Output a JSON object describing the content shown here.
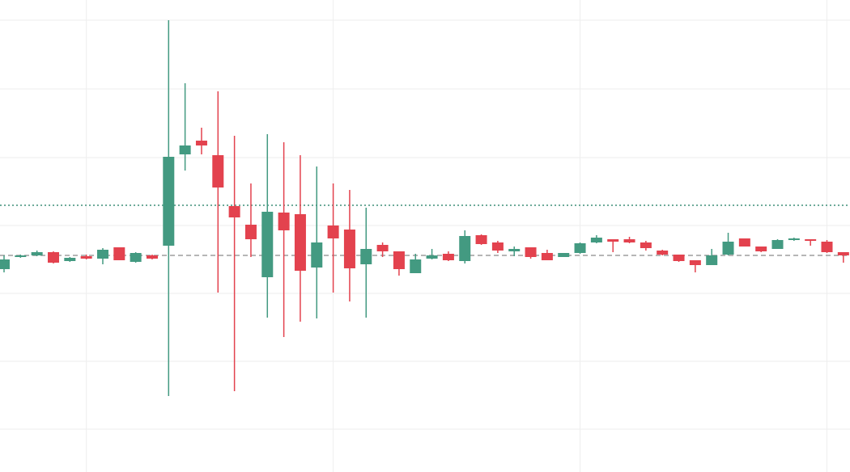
{
  "chart_data": {
    "type": "candlestick",
    "categories": [
      null,
      null,
      null,
      null,
      null,
      null,
      null,
      null,
      null,
      null,
      null,
      null,
      null,
      null,
      null,
      null,
      null,
      null,
      null,
      null,
      null,
      null,
      null,
      null,
      null,
      null,
      null,
      null,
      null,
      null,
      null,
      null,
      null,
      null,
      null,
      null,
      null,
      null,
      null,
      null,
      null,
      null,
      null,
      null,
      null,
      null,
      null,
      null,
      null,
      null,
      null,
      null
    ],
    "open": [
      25.1,
      26.6,
      26.8,
      27.2,
      26.1,
      26.7,
      26.4,
      27.8,
      26.0,
      26.8,
      28.0,
      39.3,
      41.0,
      39.2,
      32.9,
      30.6,
      24.1,
      32.1,
      31.9,
      25.3,
      30.5,
      30.0,
      25.7,
      28.1,
      27.3,
      24.6,
      26.4,
      27.0,
      26.1,
      29.3,
      28.4,
      27.3,
      27.8,
      27.1,
      26.6,
      27.1,
      28.4,
      28.8,
      28.8,
      28.4,
      27.4,
      26.9,
      26.2,
      25.6,
      26.9,
      28.9,
      27.9,
      27.6,
      28.7,
      28.8,
      28.5,
      27.2
    ],
    "high": [
      26.8,
      26.9,
      27.4,
      27.3,
      26.6,
      26.9,
      27.7,
      27.8,
      27.2,
      26.9,
      55.9,
      48.1,
      42.6,
      47.1,
      41.6,
      35.7,
      41.8,
      40.8,
      39.2,
      37.8,
      35.7,
      34.9,
      32.7,
      28.4,
      27.3,
      27.0,
      27.6,
      27.3,
      29.9,
      29.4,
      28.6,
      27.9,
      27.8,
      27.5,
      27.1,
      28.4,
      29.3,
      28.8,
      29.1,
      28.6,
      27.5,
      26.9,
      26.2,
      27.6,
      29.6,
      28.9,
      27.9,
      28.8,
      29.0,
      28.8,
      28.7,
      27.2
    ],
    "low": [
      24.7,
      26.5,
      26.7,
      25.8,
      26.0,
      26.3,
      25.7,
      26.2,
      25.9,
      26.3,
      9.4,
      37.3,
      39.3,
      22.2,
      10.0,
      26.6,
      19.1,
      16.7,
      18.6,
      19.0,
      22.2,
      21.1,
      19.1,
      26.6,
      24.3,
      24.6,
      26.3,
      26.1,
      25.8,
      28.1,
      27.1,
      26.7,
      26.4,
      26.2,
      26.6,
      27.0,
      28.3,
      27.2,
      28.3,
      27.4,
      26.8,
      26.0,
      24.7,
      25.6,
      26.8,
      27.9,
      27.2,
      27.6,
      28.6,
      28.0,
      27.1,
      25.9
    ],
    "close": [
      26.3,
      26.8,
      27.2,
      25.9,
      26.5,
      26.4,
      27.5,
      26.2,
      27.1,
      26.4,
      39.0,
      40.4,
      40.4,
      35.2,
      31.5,
      28.8,
      32.2,
      29.9,
      24.9,
      28.4,
      28.9,
      25.2,
      27.6,
      27.3,
      25.1,
      26.3,
      26.8,
      26.2,
      29.2,
      28.2,
      27.4,
      27.6,
      26.6,
      26.2,
      27.1,
      28.3,
      29.0,
      28.5,
      28.4,
      27.7,
      26.9,
      26.1,
      25.6,
      26.8,
      28.5,
      27.9,
      27.3,
      28.7,
      28.9,
      28.6,
      27.2,
      26.8
    ],
    "up_color": "#439a81",
    "down_color": "#e3424e",
    "ylim": [
      0,
      58.4
    ],
    "ygrid": [
      55.9,
      47.4,
      38.9,
      30.5,
      22.1,
      13.7,
      5.3
    ],
    "xgrid": [
      5,
      20,
      35,
      50
    ],
    "grid": true,
    "price_lines": [
      {
        "value": 33.0,
        "style": "dotted",
        "color": "#3f8f79"
      },
      {
        "value": 26.8,
        "style": "dashed",
        "color": "#9e9e9e"
      }
    ]
  }
}
